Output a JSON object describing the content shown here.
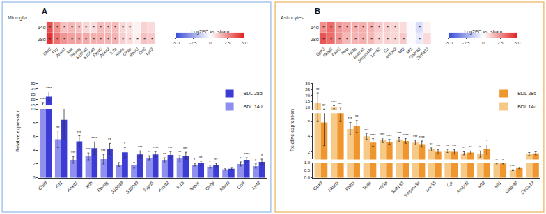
{
  "chart_data": [
    {
      "type": "heatmap",
      "panel_label": "A",
      "panel_title": "Microglia",
      "x": [
        "Chil3",
        "Fn1",
        "Anxa1",
        "Xdh",
        "Retnlg",
        "S100a8",
        "S100a9",
        "Fxyd5",
        "Anxa2",
        "IL1b",
        "Nrarp",
        "Cirbp",
        "Rbm3",
        "Ccl6",
        "Lyz2"
      ],
      "y": [
        "14d",
        "28d"
      ],
      "z": [
        [
          3.9,
          2.5,
          1.4,
          1.6,
          1.4,
          0.9,
          0.8,
          1.5,
          1.4,
          1.5,
          0.9,
          0.7,
          0.3,
          1.0,
          0.8
        ],
        [
          4.5,
          3.1,
          2.4,
          2.1,
          2.1,
          1.9,
          1.8,
          1.8,
          1.7,
          1.7,
          1.1,
          0.8,
          0.4,
          1.4,
          1.2
        ]
      ],
      "cell_labels": [
        [
          "*",
          "*",
          "*",
          "*",
          "*",
          "*",
          "*",
          "*",
          "*",
          "*",
          "*",
          "*",
          null,
          null,
          null
        ],
        [
          "*",
          "*",
          "*",
          "*",
          "*",
          "*",
          "*",
          "*",
          "*",
          "*",
          "*",
          "*",
          "*",
          "*",
          "*"
        ]
      ],
      "zlim": [
        -5,
        5
      ],
      "colorbar_title": "Log2FC vs. sham",
      "colorbar_ticks": [
        {
          "value": -5,
          "label": "-5.0"
        },
        -2.5,
        0,
        2.5,
        {
          "value": 5,
          "label": "5.0"
        }
      ],
      "color_scale": [
        "#3a4fd8",
        "#ffffff",
        "#e0201e"
      ]
    },
    {
      "type": "bar",
      "categories": [
        "Chil3",
        "Fn1",
        "Anxa1",
        "Xdh",
        "Retnlg",
        "S100a8",
        "S100a9",
        "Fxyd5",
        "Anxa2",
        "IL1b",
        "Nrarp",
        "Cirbp",
        "Rbm3",
        "Ccl6",
        "Lyz2"
      ],
      "ylabel": "Relative expression",
      "y_segments": [
        {
          "ylim": [
            0,
            10
          ],
          "yticks": [
            0,
            2,
            4,
            6,
            8,
            10
          ]
        },
        {
          "ylim": [
            15,
            35
          ],
          "yticks": [
            15,
            20,
            25,
            30,
            35
          ]
        }
      ],
      "legend": "upper right",
      "series": [
        {
          "name": "BDL 14d",
          "color": "#8f8ff0",
          "values": [
            15,
            5.6,
            2.6,
            3.1,
            2.7,
            1.9,
            1.8,
            2.9,
            2.6,
            2.8,
            1.9,
            1.6,
            1.2,
            2.0,
            1.7
          ],
          "errors": [
            2,
            1.2,
            0.5,
            0.5,
            0.7,
            0.3,
            0.4,
            0.3,
            0.3,
            0.4,
            0.2,
            0.2,
            0.1,
            0.3,
            0.3
          ],
          "significance": [
            "****",
            "**",
            "***",
            "***",
            "***",
            null,
            null,
            "**",
            "**",
            "**",
            "*",
            "*",
            null,
            "*",
            "*"
          ]
        },
        {
          "name": "BDL 28d",
          "color": "#3c3cd4",
          "values": [
            23,
            8.5,
            5.3,
            4.3,
            4.2,
            3.7,
            3.4,
            3.4,
            3.3,
            3.2,
            2.1,
            1.8,
            1.3,
            2.6,
            2.3
          ],
          "errors": [
            4,
            3,
            0.8,
            0.9,
            0.8,
            0.7,
            0.5,
            0.4,
            0.5,
            0.5,
            0.3,
            0.3,
            0.1,
            0.3,
            0.4
          ],
          "significance": [
            "****",
            "****",
            "***",
            "****",
            "**",
            "*",
            "***",
            "****",
            "***",
            "***",
            "**",
            "**",
            null,
            "****",
            "*"
          ]
        }
      ]
    },
    {
      "type": "heatmap",
      "panel_label": "B",
      "panel_title": "Astrocytes",
      "x": [
        "Gpx3",
        "Fkbp5",
        "Fbln5",
        "Tenp",
        "Hif3a",
        "Sult1a1",
        "Serpina3n",
        "Lrrc55",
        "Cp",
        "Amigo2",
        "Mt2",
        "Mt1",
        "Gabra2",
        "Slc6a13"
      ],
      "y": [
        "14d",
        "28d"
      ],
      "z": [
        [
          2.5,
          3.3,
          2.3,
          2.0,
          1.8,
          1.8,
          1.7,
          1.2,
          1.1,
          0.9,
          0.8,
          -0.1,
          -1.0,
          0.3
        ],
        [
          3.8,
          3.3,
          2.4,
          1.6,
          1.7,
          1.8,
          1.6,
          1.0,
          1.0,
          0.9,
          1.2,
          -0.1,
          -0.6,
          0.8
        ]
      ],
      "cell_labels": [
        [
          "*",
          "*",
          "*",
          "*",
          "*",
          "*",
          "*",
          "*",
          "*",
          "*",
          null,
          null,
          "*",
          null
        ],
        [
          "*",
          "*",
          "*",
          "*",
          "*",
          "*",
          "*",
          "*",
          "*",
          "*",
          "*",
          null,
          "*",
          null
        ]
      ],
      "zlim": [
        -5,
        5
      ],
      "colorbar_title": "Log2FC vs. sham",
      "colorbar_ticks": [
        {
          "value": -5,
          "label": "-5.0"
        },
        -2.5,
        0,
        2.5,
        {
          "value": 5,
          "label": "5.0"
        }
      ],
      "color_scale": [
        "#3a4fd8",
        "#ffffff",
        "#e0201e"
      ]
    },
    {
      "type": "bar",
      "categories": [
        "Gpx3",
        "Fkbp5",
        "Fbln5",
        "Tenp",
        "Hif3a",
        "Sult1a1",
        "Serpina3n",
        "Lrrc55",
        "Cp",
        "Amigo2",
        "Mt2",
        "Mt1",
        "Gabra2",
        "Slc6a13"
      ],
      "ylabel": "Relative expression",
      "y_segments": [
        {
          "ylim": [
            0,
            1
          ],
          "yticks": [
            {
              "value": 0,
              "label": "0.0"
            },
            0.5,
            {
              "value": 1,
              "label": "1.0"
            }
          ]
        },
        {
          "ylim": [
            1,
            7
          ],
          "yticks": [
            2,
            4,
            6
          ]
        },
        {
          "ylim": [
            8,
            30
          ],
          "yticks": [
            10,
            15,
            20,
            25,
            30
          ]
        }
      ],
      "legend": "upper right",
      "series": [
        {
          "name": "BDL 14d",
          "color": "#f7c987",
          "values": [
            14,
            10.5,
            5.0,
            4.0,
            3.5,
            3.6,
            3.2,
            2.3,
            2.1,
            1.8,
            1.7,
            0.95,
            0.5,
            1.7
          ],
          "errors": [
            8,
            1.5,
            0.8,
            0.4,
            0.3,
            0.3,
            0.3,
            0.2,
            0.2,
            0.2,
            0.4,
            0.03,
            0.03,
            0.2
          ],
          "significance": [
            "**",
            "****",
            "***",
            "***",
            "***",
            "***",
            "***",
            "**",
            "**",
            "**",
            "*",
            null,
            "****",
            null
          ]
        },
        {
          "name": "BDL 28d",
          "color": "#f0962e",
          "values": [
            5.8,
            8.0,
            5.3,
            3.2,
            3.3,
            3.4,
            3.0,
            2.0,
            2.0,
            1.9,
            2.3,
            0.95,
            0.65,
            1.8
          ],
          "errors": [
            3,
            2,
            0.8,
            0.5,
            0.3,
            0.3,
            0.4,
            0.3,
            0.3,
            0.2,
            0.6,
            0.03,
            0.05,
            0.2
          ],
          "significance": [
            "**",
            "**",
            "**",
            "****",
            "****",
            "****",
            "****",
            "***",
            "***",
            "**",
            "*",
            null,
            null,
            null
          ]
        }
      ]
    }
  ]
}
